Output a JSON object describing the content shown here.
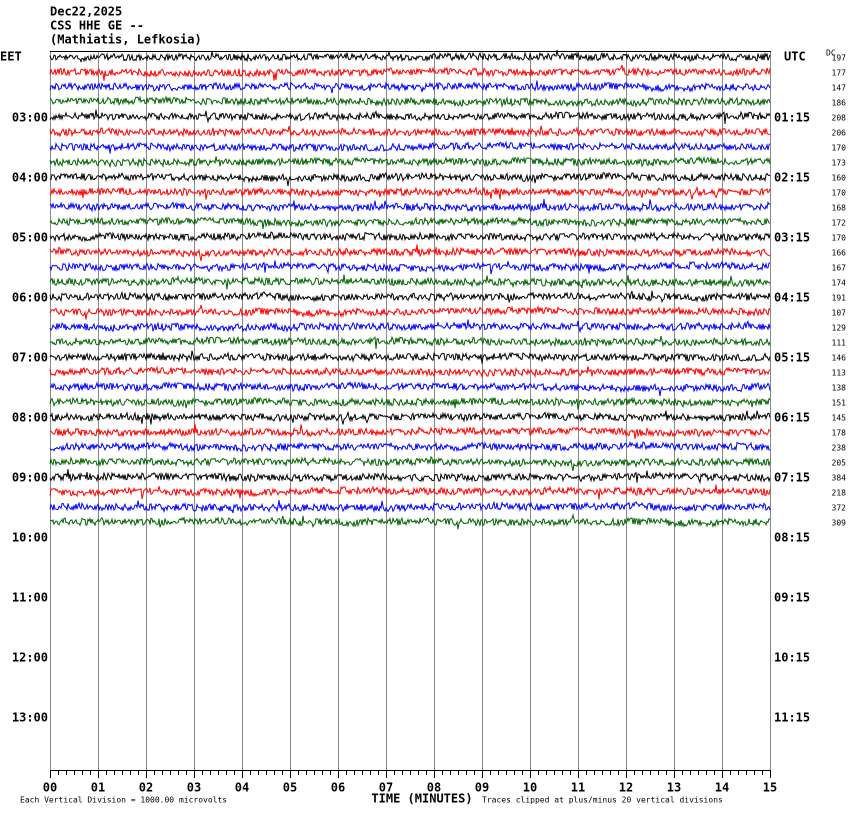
{
  "chart_data": {
    "type": "helicorder",
    "header": [
      "Dec22,2025",
      "CSS HHE GE --",
      "(Mathiatis, Lefkosia)"
    ],
    "time_zone_left": "EET",
    "time_zone_right": "UTC",
    "left_hours": [
      "03:00",
      "04:00",
      "05:00",
      "06:00",
      "07:00",
      "08:00",
      "09:00",
      "10:00",
      "11:00",
      "12:00",
      "13:00"
    ],
    "right_hours": [
      "01:15",
      "02:15",
      "03:15",
      "04:15",
      "05:15",
      "06:15",
      "07:15",
      "08:15",
      "09:15",
      "10:15",
      "11:15"
    ],
    "dc_label": "DC",
    "dc_values": [
      197,
      177,
      147,
      186,
      208,
      206,
      170,
      173,
      160,
      170,
      168,
      172,
      170,
      166,
      167,
      174,
      191,
      107,
      129,
      111,
      146,
      113,
      138,
      151,
      145,
      178,
      238,
      205,
      384,
      218,
      372,
      309
    ],
    "trace_colors": [
      "#000000",
      "#ff0000",
      "#0000ff",
      "#006400"
    ],
    "xlim": [
      0,
      15
    ],
    "xticks": [
      {
        "value": 0,
        "label": "00"
      },
      {
        "value": 1,
        "label": "01"
      },
      {
        "value": 2,
        "label": "02"
      },
      {
        "value": 3,
        "label": "03"
      },
      {
        "value": 4,
        "label": "04"
      },
      {
        "value": 5,
        "label": "05"
      },
      {
        "value": 6,
        "label": "06"
      },
      {
        "value": 7,
        "label": "07"
      },
      {
        "value": 8,
        "label": "08"
      },
      {
        "value": 9,
        "label": "09"
      },
      {
        "value": 10,
        "label": "10"
      },
      {
        "value": 11,
        "label": "11"
      },
      {
        "value": 12,
        "label": "12"
      },
      {
        "value": 13,
        "label": "13"
      },
      {
        "value": 14,
        "label": "14"
      },
      {
        "value": 15,
        "label": "15"
      }
    ],
    "xlabel": "TIME (MINUTES)",
    "footer_left": "Each Vertical Division = 1000.00 microvolts",
    "footer_right": "Traces clipped at plus/minus 20 vertical divisions",
    "grid": true
  }
}
